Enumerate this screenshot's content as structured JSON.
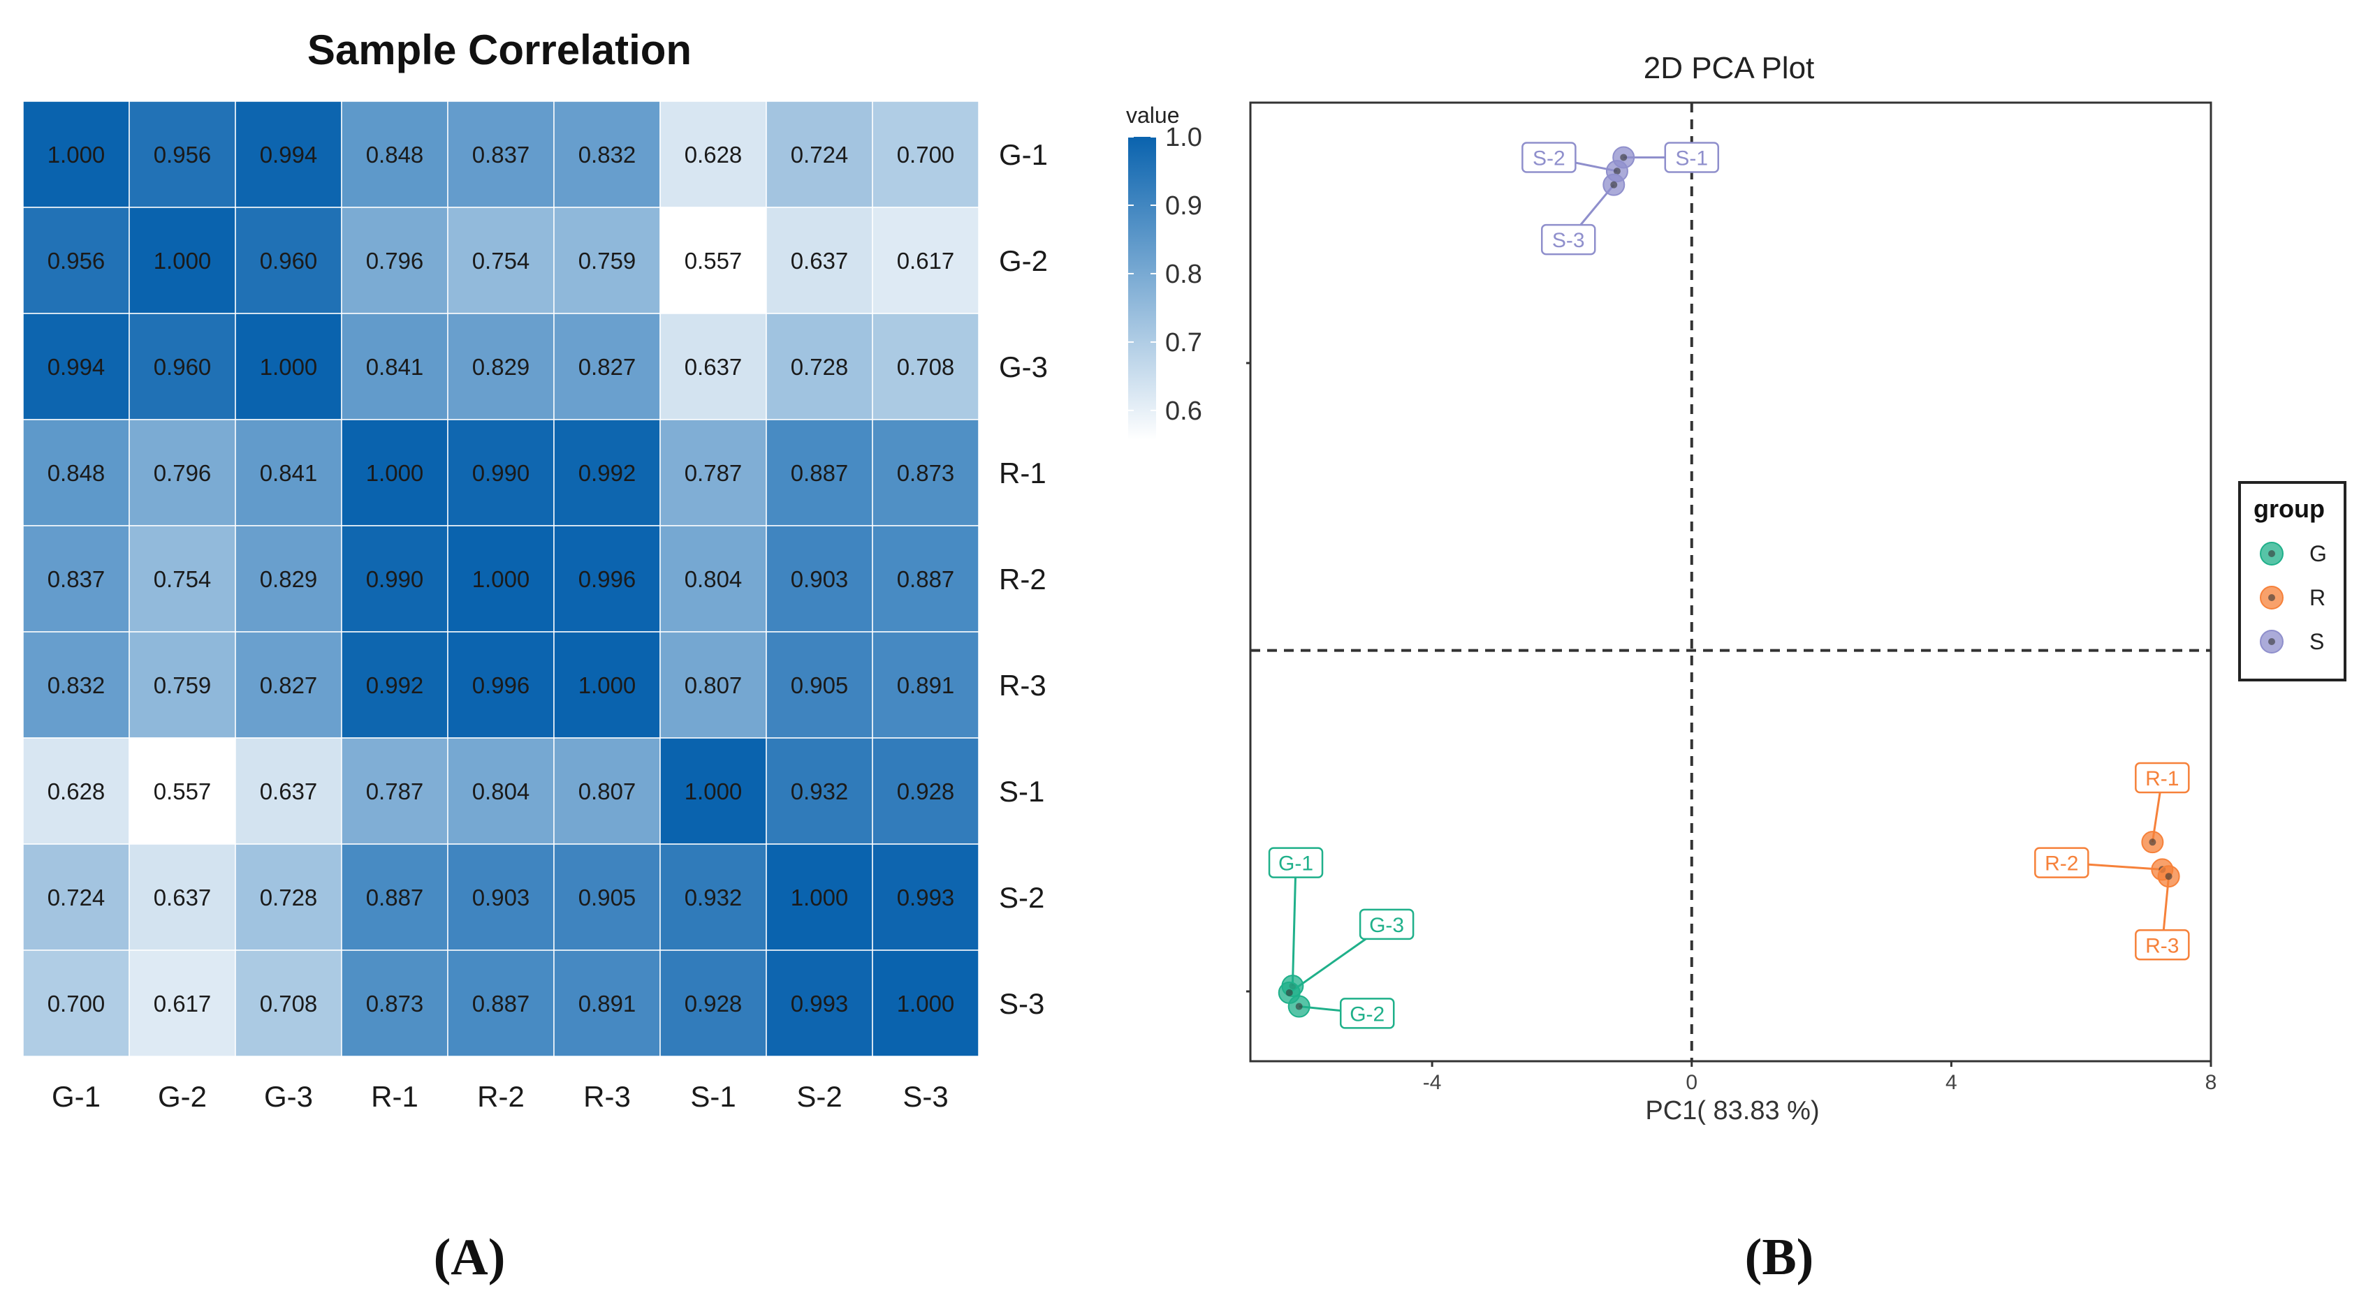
{
  "chart_data": [
    {
      "type": "heatmap",
      "title": "Sample Correlation",
      "panel_label": "(A)",
      "rows": [
        "G-1",
        "G-2",
        "G-3",
        "R-1",
        "R-2",
        "R-3",
        "S-1",
        "S-2",
        "S-3"
      ],
      "columns": [
        "G-1",
        "G-2",
        "G-3",
        "R-1",
        "R-2",
        "R-3",
        "S-1",
        "S-2",
        "S-3"
      ],
      "values": [
        [
          "1.000",
          "0.956",
          "0.994",
          "0.848",
          "0.837",
          "0.832",
          "0.628",
          "0.724",
          "0.700"
        ],
        [
          "0.956",
          "1.000",
          "0.960",
          "0.796",
          "0.754",
          "0.759",
          "0.557",
          "0.637",
          "0.617"
        ],
        [
          "0.994",
          "0.960",
          "1.000",
          "0.841",
          "0.829",
          "0.827",
          "0.637",
          "0.728",
          "0.708"
        ],
        [
          "0.848",
          "0.796",
          "0.841",
          "1.000",
          "0.990",
          "0.992",
          "0.787",
          "0.887",
          "0.873"
        ],
        [
          "0.837",
          "0.754",
          "0.829",
          "0.990",
          "1.000",
          "0.996",
          "0.804",
          "0.903",
          "0.887"
        ],
        [
          "0.832",
          "0.759",
          "0.827",
          "0.992",
          "0.996",
          "1.000",
          "0.807",
          "0.905",
          "0.891"
        ],
        [
          "0.628",
          "0.557",
          "0.637",
          "0.787",
          "0.804",
          "0.807",
          "1.000",
          "0.932",
          "0.928"
        ],
        [
          "0.724",
          "0.637",
          "0.728",
          "0.887",
          "0.903",
          "0.905",
          "0.932",
          "1.000",
          "0.993"
        ],
        [
          "0.700",
          "0.617",
          "0.708",
          "0.873",
          "0.887",
          "0.891",
          "0.928",
          "0.993",
          "1.000"
        ]
      ],
      "colorbar": {
        "title": "value",
        "range": [
          0.557,
          1.0
        ],
        "ticks": [
          "1.0",
          "0.9",
          "0.8",
          "0.7",
          "0.6"
        ],
        "color_low": "#ffffff",
        "color_high": "#0a63ae"
      }
    },
    {
      "type": "scatter",
      "title": "2D PCA Plot",
      "panel_label": "(B)",
      "xlabel": "PC1( 83.83 %)",
      "ylabel": "",
      "xlim": [
        -6.8,
        8.0
      ],
      "ylim": [
        -3.0,
        4.0
      ],
      "xticks": [
        "-4",
        "0",
        "4",
        "8"
      ],
      "x_zero_line": 0,
      "y_zero_line": 0,
      "legend": {
        "title": "group",
        "position": "right",
        "entries": [
          {
            "name": "G",
            "color": "#1fb08a"
          },
          {
            "name": "R",
            "color": "#f6813a"
          },
          {
            "name": "S",
            "color": "#8f8fcc"
          }
        ]
      },
      "points": [
        {
          "label": "G-1",
          "group": "G",
          "x": -6.15,
          "y": -2.45,
          "lx": -6.1,
          "ly": -1.55
        },
        {
          "label": "G-2",
          "group": "G",
          "x": -6.05,
          "y": -2.6,
          "lx": -5.0,
          "ly": -2.65
        },
        {
          "label": "G-3",
          "group": "G",
          "x": -6.2,
          "y": -2.5,
          "lx": -4.7,
          "ly": -2.0
        },
        {
          "label": "R-1",
          "group": "R",
          "x": 7.1,
          "y": -1.4,
          "lx": 7.25,
          "ly": -0.93
        },
        {
          "label": "R-2",
          "group": "R",
          "x": 7.25,
          "y": -1.6,
          "lx": 5.7,
          "ly": -1.55
        },
        {
          "label": "R-3",
          "group": "R",
          "x": 7.35,
          "y": -1.65,
          "lx": 7.25,
          "ly": -2.15
        },
        {
          "label": "S-1",
          "group": "S",
          "x": -1.05,
          "y": 3.6,
          "lx": 0.0,
          "ly": 3.6
        },
        {
          "label": "S-2",
          "group": "S",
          "x": -1.15,
          "y": 3.5,
          "lx": -2.2,
          "ly": 3.6
        },
        {
          "label": "S-3",
          "group": "S",
          "x": -1.2,
          "y": 3.4,
          "lx": -1.9,
          "ly": 3.0
        }
      ]
    }
  ]
}
